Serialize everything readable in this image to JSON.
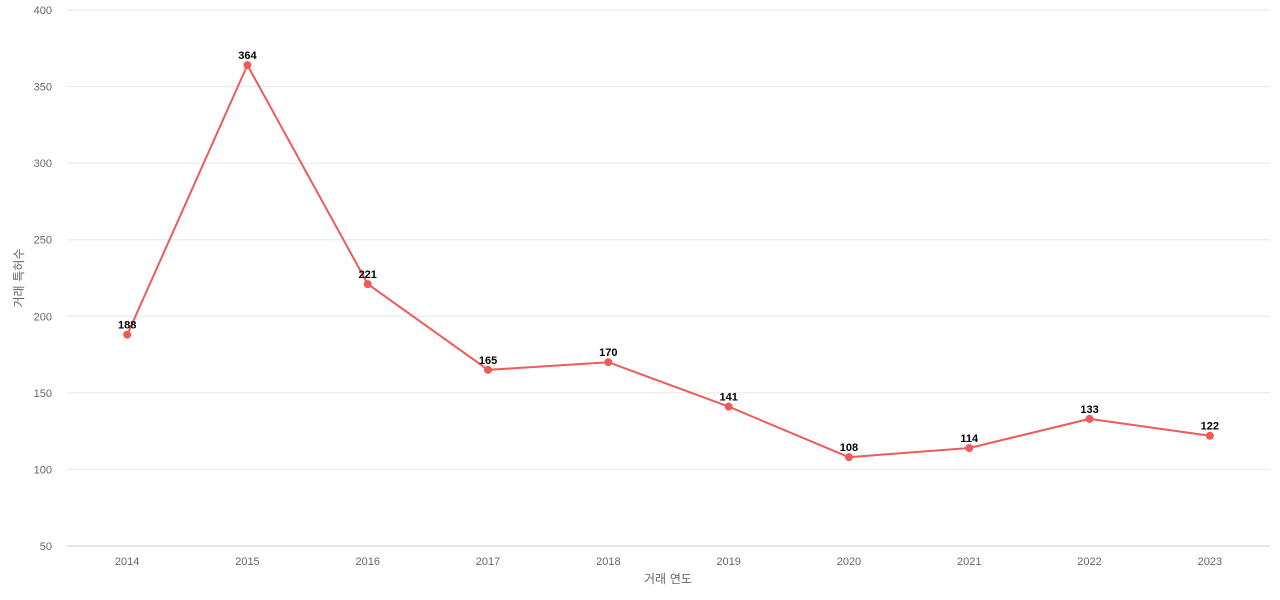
{
  "chart_data": {
    "type": "line",
    "title": "",
    "xlabel": "거래 연도",
    "ylabel": "거래 특허수",
    "categories": [
      "2014",
      "2015",
      "2016",
      "2017",
      "2018",
      "2019",
      "2020",
      "2021",
      "2022",
      "2023"
    ],
    "series": [
      {
        "values": [
          188,
          364,
          221,
          165,
          170,
          141,
          108,
          114,
          133,
          122
        ]
      }
    ],
    "ylim": [
      50,
      400
    ],
    "yticks": [
      50,
      100,
      150,
      200,
      250,
      300,
      350,
      400
    ],
    "grid": true,
    "data_labels": true,
    "colors": {
      "line": "#ef5a5a",
      "grid": "#e6e6e6",
      "text": "#666666"
    }
  }
}
